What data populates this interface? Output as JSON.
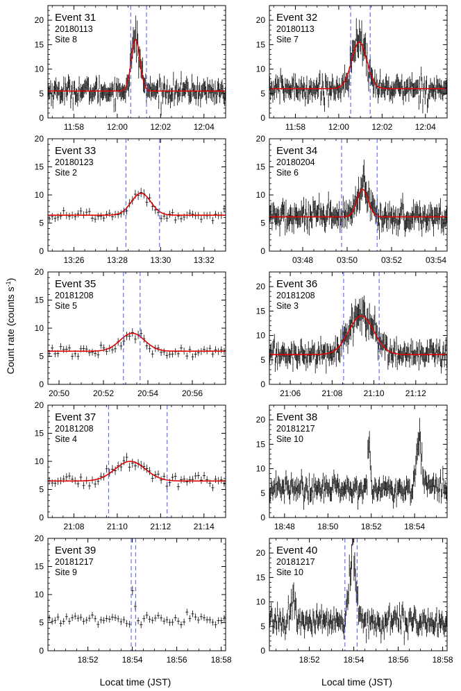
{
  "figure": {
    "ylabel": "Count rate (counts s",
    "ylabel_sup": "-1",
    "ylabel_close": ")",
    "xlabel_left": "Locat time (JST)",
    "xlabel_right": "Local time (JST)",
    "colors": {
      "data": "#000000",
      "fit": "#e00000",
      "window": "#5566ee"
    }
  },
  "chart_data": [
    {
      "type": "scatter",
      "event": "Event 31",
      "date": "20180113",
      "site": "Site 8",
      "xlim": [
        716.8,
        725.0
      ],
      "ylim": [
        0,
        23
      ],
      "yticks": [
        0,
        5,
        10,
        15,
        20
      ],
      "xticks": [
        718,
        720,
        722,
        724
      ],
      "xtick_labels": [
        "11:58",
        "12:00",
        "12:02",
        "12:04"
      ],
      "dense": true,
      "baseline": 5.5,
      "peak": 16,
      "center": 720.85,
      "sigma": 0.2,
      "window": [
        720.62,
        721.35
      ],
      "fit": true
    },
    {
      "type": "scatter",
      "event": "Event 32",
      "date": "20180113",
      "site": "Site 7",
      "xlim": [
        716.8,
        725.0
      ],
      "ylim": [
        0,
        23
      ],
      "yticks": [
        0,
        5,
        10,
        15,
        20
      ],
      "xticks": [
        718,
        720,
        722,
        724
      ],
      "xtick_labels": [
        "11:58",
        "12:00",
        "12:02",
        "12:04"
      ],
      "dense": true,
      "baseline": 6,
      "peak": 15.5,
      "center": 720.95,
      "sigma": 0.35,
      "window": [
        720.55,
        721.45
      ],
      "fit": true
    },
    {
      "type": "scatter",
      "event": "Event 33",
      "date": "20180123",
      "site": "Site 2",
      "xlim": [
        804.8,
        813.0
      ],
      "ylim": [
        0,
        20
      ],
      "yticks": [
        0,
        5,
        10,
        15,
        20
      ],
      "xticks": [
        806,
        808,
        810,
        812
      ],
      "xtick_labels": [
        "13:26",
        "13:28",
        "13:30",
        "13:32"
      ],
      "dense": false,
      "baseline": 6.4,
      "peak": 10.3,
      "center": 809.1,
      "sigma": 0.45,
      "window": [
        808.4,
        809.95
      ],
      "fit": true
    },
    {
      "type": "scatter",
      "event": "Event 34",
      "date": "20180204",
      "site": "Site 6",
      "xlim": [
        226.5,
        234.5
      ],
      "ylim": [
        0,
        20
      ],
      "yticks": [
        0,
        5,
        10,
        15,
        20
      ],
      "xticks": [
        228,
        230,
        232,
        234
      ],
      "xtick_labels": [
        "03:48",
        "03:50",
        "03:52",
        "03:54"
      ],
      "dense": true,
      "baseline": 6.1,
      "peak": 11,
      "center": 230.7,
      "sigma": 0.25,
      "window": [
        229.75,
        231.35
      ],
      "fit": true
    },
    {
      "type": "scatter",
      "event": "Event 35",
      "date": "20181208",
      "site": "Site 5",
      "xlim": [
        1249.5,
        1257.5
      ],
      "ylim": [
        0,
        20
      ],
      "yticks": [
        0,
        5,
        10,
        15,
        20
      ],
      "xticks": [
        1250,
        1252,
        1254,
        1256
      ],
      "xtick_labels": [
        "20:50",
        "20:52",
        "20:54",
        "20:56"
      ],
      "dense": false,
      "baseline": 5.9,
      "peak": 9.1,
      "center": 1253.3,
      "sigma": 0.55,
      "window": [
        1252.9,
        1253.65
      ],
      "fit": true
    },
    {
      "type": "scatter",
      "event": "Event 36",
      "date": "20181208",
      "site": "Site 3",
      "xlim": [
        1265.0,
        1273.5
      ],
      "ylim": [
        0,
        23
      ],
      "yticks": [
        0,
        5,
        10,
        15,
        20
      ],
      "xticks": [
        1266,
        1268,
        1270,
        1272
      ],
      "xtick_labels": [
        "21:06",
        "21:08",
        "21:10",
        "21:12"
      ],
      "dense": true,
      "baseline": 6.1,
      "peak": 14,
      "center": 1269.4,
      "sigma": 0.6,
      "window": [
        1268.55,
        1270.25
      ],
      "fit": true
    },
    {
      "type": "scatter",
      "event": "Event 37",
      "date": "20181208",
      "site": "Site 4",
      "xlim": [
        1266.8,
        1275.0
      ],
      "ylim": [
        0,
        20
      ],
      "yticks": [
        0,
        5,
        10,
        15,
        20
      ],
      "xticks": [
        1268,
        1270,
        1272,
        1274
      ],
      "xtick_labels": [
        "21:08",
        "21:10",
        "21:12",
        "21:14"
      ],
      "dense": false,
      "baseline": 6.5,
      "peak": 10,
      "center": 1270.6,
      "sigma": 0.7,
      "window": [
        1269.6,
        1272.3
      ],
      "fit": true
    },
    {
      "type": "scatter",
      "event": "Event 38",
      "date": "20181217",
      "site": "Site 10",
      "xlim": [
        1127.3,
        1135.5
      ],
      "ylim": [
        0,
        23
      ],
      "yticks": [
        0,
        5,
        10,
        15,
        20
      ],
      "xticks": [
        1128,
        1130,
        1132,
        1134
      ],
      "xtick_labels": [
        "18:48",
        "18:50",
        "18:52",
        "18:54"
      ],
      "dense": true,
      "baseline": 6,
      "fit": false,
      "bursts": [
        {
          "center": 1131.9,
          "width": 0.05,
          "amp": 8
        },
        {
          "center": 1134.2,
          "width": 0.12,
          "amp": 10
        }
      ]
    },
    {
      "type": "scatter",
      "event": "Event 39",
      "date": "20181217",
      "site": "Site 9",
      "xlim": [
        1130.2,
        1138.2
      ],
      "ylim": [
        0,
        20
      ],
      "yticks": [
        0,
        5,
        10,
        15,
        20
      ],
      "xticks": [
        1132,
        1134,
        1136,
        1138
      ],
      "xtick_labels": [
        "18:52",
        "18:54",
        "18:56",
        "18:58"
      ],
      "dense": false,
      "baseline": 5.6,
      "fit": false,
      "window": [
        1133.95,
        1134.15
      ],
      "bursts": [
        {
          "center": 1134.05,
          "width": 0.05,
          "amp": 7
        }
      ]
    },
    {
      "type": "scatter",
      "event": "Event 40",
      "date": "20181217",
      "site": "Site 10",
      "xlim": [
        1130.2,
        1138.2
      ],
      "ylim": [
        0,
        23
      ],
      "yticks": [
        0,
        5,
        10,
        15,
        20
      ],
      "xticks": [
        1132,
        1134,
        1136,
        1138
      ],
      "xtick_labels": [
        "18:52",
        "18:54",
        "18:56",
        "18:58"
      ],
      "dense": true,
      "baseline": 6,
      "fit": false,
      "window": [
        1133.6,
        1134.15
      ],
      "bursts": [
        {
          "center": 1131.3,
          "width": 0.1,
          "amp": 5
        },
        {
          "center": 1133.95,
          "width": 0.15,
          "amp": 13
        }
      ]
    }
  ]
}
